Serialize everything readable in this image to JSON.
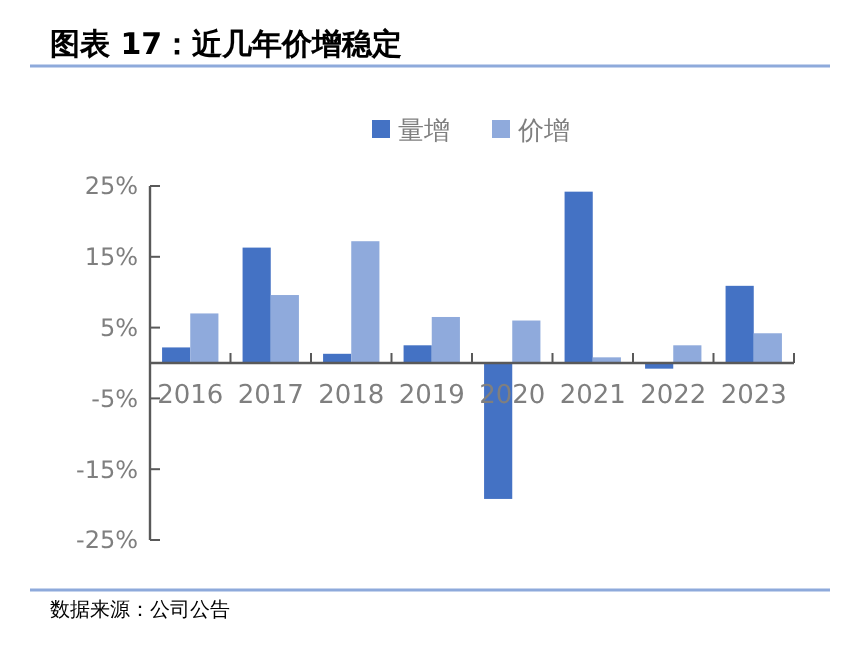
{
  "chart_data": {
    "type": "bar",
    "title": "图表 17：近几年价增稳定",
    "categories": [
      "2016",
      "2017",
      "2018",
      "2019",
      "2020",
      "2021",
      "2022",
      "2023"
    ],
    "series": [
      {
        "name": "量增",
        "color": "#4472c4",
        "values": [
          2.2,
          16.3,
          1.3,
          2.5,
          -19.2,
          24.2,
          -0.8,
          10.9
        ]
      },
      {
        "name": "价增",
        "color": "#8faadc",
        "values": [
          7.0,
          9.6,
          17.2,
          6.5,
          6.0,
          0.8,
          2.5,
          4.2
        ]
      }
    ],
    "ylim": [
      -25,
      25
    ],
    "yticks": [
      {
        "value": 25,
        "label": "25%"
      },
      {
        "value": 15,
        "label": "15%"
      },
      {
        "value": 5,
        "label": "5%"
      },
      {
        "value": -5,
        "label": "-5%"
      },
      {
        "value": -15,
        "label": "-15%"
      },
      {
        "value": -25,
        "label": "-25%"
      }
    ],
    "grid": false,
    "legend": "top",
    "annotations": [
      "数据来源：公司公告"
    ]
  }
}
